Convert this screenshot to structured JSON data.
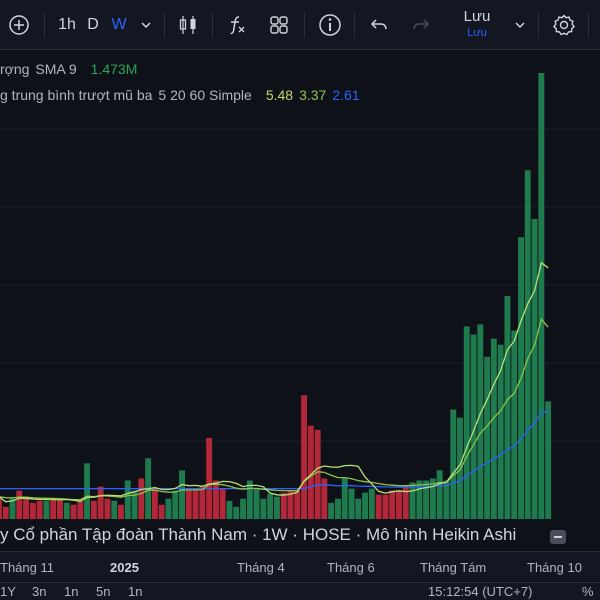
{
  "toolbar": {
    "intervals": [
      "1h",
      "D",
      "W"
    ],
    "active_interval": "W",
    "save_label": "Lưu",
    "save_sublabel": "Lưu"
  },
  "legend": {
    "volume": {
      "label": "rợng",
      "indicator": "SMA 9",
      "value": "1.473M"
    },
    "ema": {
      "label": "g trung bình trượt mũ ba",
      "params": "5 20 60 Simple",
      "values": [
        "5.48",
        "3.37",
        "2.61"
      ]
    }
  },
  "symbol_title": "y Cổ phần Tập đoàn Thành Nam · 1W · HOSE · Mô hình Heikin Ashi",
  "time_axis": {
    "ticks": [
      {
        "label": "Tháng 11",
        "bold": false
      },
      {
        "label": "2025",
        "bold": true
      },
      {
        "label": "Tháng 4",
        "bold": false
      },
      {
        "label": "Tháng 6",
        "bold": false
      },
      {
        "label": "Tháng Tám",
        "bold": false
      },
      {
        "label": "Tháng 10",
        "bold": false
      }
    ]
  },
  "bottom_bar": {
    "ranges": [
      "1Y",
      "3n",
      "1n",
      "5n",
      "1n"
    ],
    "clock": "15:12:54 (UTC+7)",
    "percent": "%"
  },
  "colors": {
    "up": "#1f7a4d",
    "down": "#b22838",
    "ema_fast": "#b8e07a",
    "ema_mid": "#8bc34a",
    "ema_slow": "#2962ff",
    "sma": "#4caf50"
  },
  "chart_data": {
    "type": "bar",
    "description_unit": "volume (relative)",
    "volume": [
      22,
      12,
      20,
      28,
      20,
      16,
      18,
      18,
      19,
      18,
      16,
      14,
      18,
      55,
      18,
      32,
      20,
      18,
      14,
      38,
      28,
      40,
      60,
      30,
      14,
      20,
      28,
      48,
      28,
      30,
      32,
      80,
      38,
      30,
      18,
      12,
      20,
      38,
      30,
      20,
      25,
      22,
      26,
      28,
      28,
      122,
      92,
      88,
      40,
      16,
      20,
      40,
      30,
      20,
      26,
      30,
      24,
      24,
      28,
      28,
      33,
      36,
      38,
      38,
      40,
      48,
      38,
      108,
      100,
      190,
      182,
      192,
      160,
      178,
      172,
      220,
      186,
      278,
      344,
      296,
      440,
      116
    ],
    "direction": [
      "d",
      "d",
      "u",
      "d",
      "d",
      "d",
      "d",
      "u",
      "d",
      "d",
      "u",
      "d",
      "d",
      "u",
      "d",
      "d",
      "d",
      "u",
      "d",
      "u",
      "u",
      "d",
      "u",
      "d",
      "d",
      "u",
      "u",
      "u",
      "d",
      "d",
      "d",
      "d",
      "d",
      "d",
      "u",
      "u",
      "u",
      "u",
      "u",
      "u",
      "u",
      "u",
      "d",
      "d",
      "d",
      "d",
      "d",
      "d",
      "d",
      "u",
      "u",
      "u",
      "u",
      "u",
      "u",
      "u",
      "d",
      "d",
      "d",
      "d",
      "d",
      "u",
      "u",
      "u",
      "u",
      "u",
      "u",
      "u",
      "u",
      "u",
      "u",
      "u",
      "u",
      "u",
      "u",
      "u",
      "u",
      "u",
      "u",
      "u",
      "u",
      "u"
    ]
  }
}
